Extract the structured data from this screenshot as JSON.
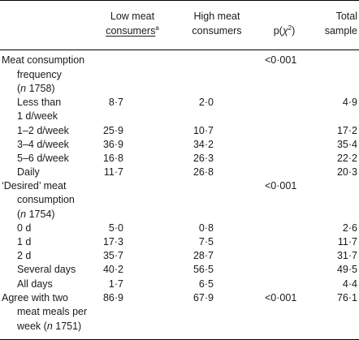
{
  "header": {
    "col_low_line1": "Low meat",
    "col_low_line2": "consumers",
    "col_low_sup": "a",
    "col_high_line1": "High meat",
    "col_high_line2": "consumers",
    "col_p_prefix": "p(",
    "col_p_symbol": "χ",
    "col_p_exp": "2",
    "col_p_suffix": ")",
    "col_total_line1": "Total",
    "col_total_line2": "sample"
  },
  "sections": {
    "freq": {
      "label_line1": "Meat consumption",
      "label_line2": "frequency",
      "n_open": "(",
      "n_symbol": "n",
      "n_value": " 1758)",
      "p": "<0·001",
      "rows": [
        {
          "label_line1": "Less than",
          "label_line2": "1 d/week",
          "low": "8·7",
          "high": "2·0",
          "total": "4·9"
        },
        {
          "label": "1–2 d/week",
          "low": "25·9",
          "high": "10·7",
          "total": "17·2"
        },
        {
          "label": "3–4 d/week",
          "low": "36·9",
          "high": "34·2",
          "total": "35·4"
        },
        {
          "label": "5–6 d/week",
          "low": "16·8",
          "high": "26·3",
          "total": "22·2"
        },
        {
          "label": "Daily",
          "low": "11·7",
          "high": "26·8",
          "total": "20·3"
        }
      ]
    },
    "desired": {
      "label_line1": "‘Desired’ meat",
      "label_line2": "consumption",
      "n_open": "(",
      "n_symbol": "n",
      "n_value": " 1754)",
      "p": "<0·001",
      "rows": [
        {
          "label": "0 d",
          "low": "5·0",
          "high": "0·8",
          "total": "2·6"
        },
        {
          "label": "1 d",
          "low": "17·3",
          "high": "7·5",
          "total": "11·7"
        },
        {
          "label": "2 d",
          "low": "35·7",
          "high": "28·7",
          "total": "31·7"
        },
        {
          "label": "Several days",
          "low": "40·2",
          "high": "56·5",
          "total": "49·5"
        },
        {
          "label": "All days",
          "low": "1·7",
          "high": "6·5",
          "total": "4·4"
        }
      ]
    },
    "agree": {
      "label_line1": "Agree with two",
      "label_line2": "meat meals per",
      "label_line3_prefix": "week (",
      "n_symbol": "n",
      "n_value": " 1751)",
      "low": "86·9",
      "high": "67·9",
      "p": "<0·001",
      "total": "76·1"
    }
  }
}
